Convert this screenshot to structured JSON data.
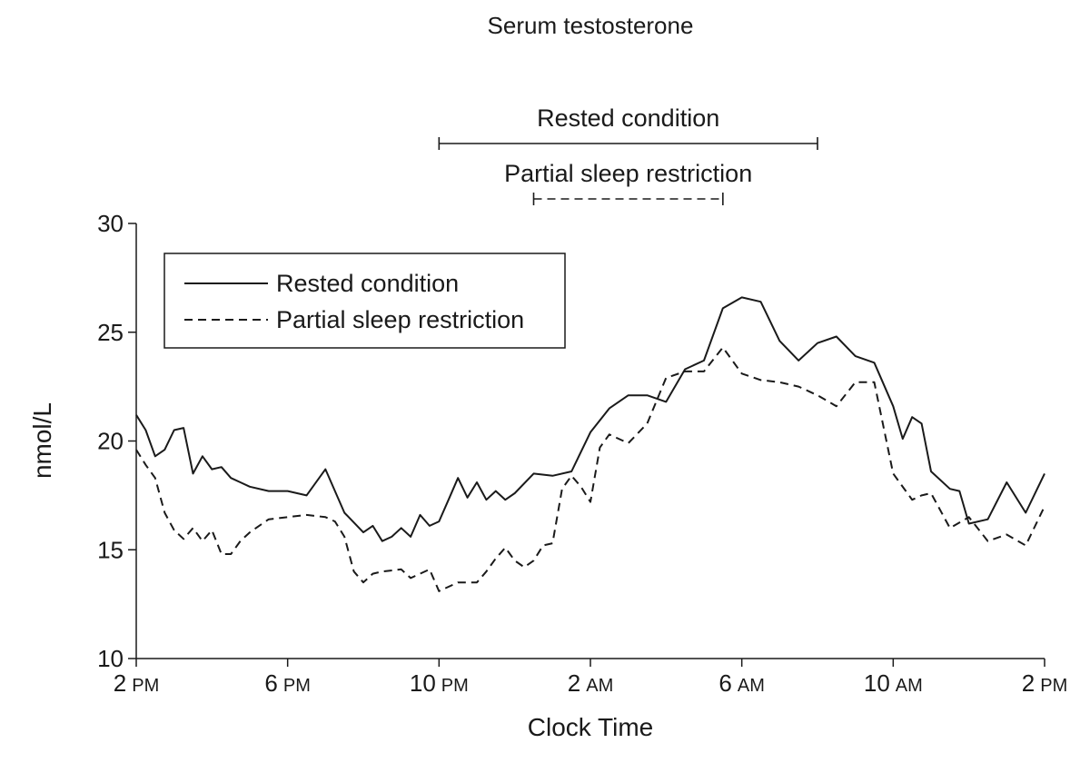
{
  "chart_data": {
    "type": "line",
    "title": "Serum testosterone",
    "xlabel": "Clock Time",
    "ylabel": "nmol/L",
    "ylim": [
      10,
      30
    ],
    "yticks": [
      10,
      15,
      20,
      25,
      30
    ],
    "xlim": [
      0,
      24
    ],
    "xunit": "hours from 2 PM",
    "xticks": [
      {
        "value": 0,
        "num": "2",
        "ampm": "PM"
      },
      {
        "value": 4,
        "num": "6",
        "ampm": "PM"
      },
      {
        "value": 8,
        "num": "10",
        "ampm": "PM"
      },
      {
        "value": 12,
        "num": "2",
        "ampm": "AM"
      },
      {
        "value": 16,
        "num": "6",
        "ampm": "AM"
      },
      {
        "value": 20,
        "num": "10",
        "ampm": "AM"
      },
      {
        "value": 24,
        "num": "2",
        "ampm": "PM"
      }
    ],
    "grid": false,
    "legend_position": "top-left",
    "sleep_bars": [
      {
        "name": "Rested condition",
        "start": 8,
        "end": 18,
        "style": "solid"
      },
      {
        "name": "Partial sleep restriction",
        "start": 10.5,
        "end": 15.5,
        "style": "dashed"
      }
    ],
    "series": [
      {
        "name": "Rested condition",
        "style": "solid",
        "x": [
          0,
          0.25,
          0.5,
          0.75,
          1,
          1.25,
          1.5,
          1.75,
          2,
          2.25,
          2.5,
          2.75,
          3,
          3.5,
          4,
          4.5,
          5,
          5.5,
          6,
          6.25,
          6.5,
          6.75,
          7,
          7.25,
          7.5,
          7.75,
          8,
          8.25,
          8.5,
          8.75,
          9,
          9.25,
          9.5,
          9.75,
          10,
          10.5,
          11,
          11.5,
          12,
          12.5,
          13,
          13.5,
          14,
          14.5,
          15,
          15.5,
          16,
          16.5,
          17,
          17.5,
          18,
          18.5,
          19,
          19.5,
          20,
          20.25,
          20.5,
          20.75,
          21,
          21.5,
          21.75,
          22,
          22.5,
          23,
          23.5,
          24
        ],
        "values": [
          21.2,
          20.5,
          19.3,
          19.6,
          20.5,
          20.6,
          18.5,
          19.3,
          18.7,
          18.8,
          18.3,
          18.1,
          17.9,
          17.7,
          17.7,
          17.5,
          18.7,
          16.7,
          15.8,
          16.1,
          15.4,
          15.6,
          16.0,
          15.6,
          16.6,
          16.1,
          16.3,
          17.3,
          18.3,
          17.4,
          18.1,
          17.3,
          17.7,
          17.3,
          17.6,
          18.5,
          18.4,
          18.6,
          20.4,
          21.5,
          22.1,
          22.1,
          21.8,
          23.3,
          23.7,
          26.1,
          26.6,
          26.4,
          24.6,
          23.7,
          24.5,
          24.8,
          23.9,
          23.6,
          21.6,
          20.1,
          21.1,
          20.8,
          18.6,
          17.8,
          17.7,
          16.2,
          16.4,
          18.1,
          16.7,
          18.5
        ]
      },
      {
        "name": "Partial sleep restriction",
        "style": "dashed",
        "x": [
          0,
          0.25,
          0.5,
          0.75,
          1,
          1.25,
          1.5,
          1.75,
          2,
          2.25,
          2.5,
          2.75,
          3,
          3.5,
          4,
          4.5,
          5,
          5.25,
          5.5,
          5.75,
          6,
          6.25,
          6.5,
          7,
          7.25,
          7.5,
          7.75,
          8,
          8.5,
          9,
          9.25,
          9.5,
          9.75,
          10,
          10.25,
          10.5,
          10.75,
          11,
          11.25,
          11.5,
          11.75,
          12,
          12.25,
          12.5,
          13,
          13.5,
          14,
          14.5,
          15,
          15.5,
          16,
          16.5,
          17,
          17.5,
          18,
          18.5,
          19,
          19.5,
          20,
          20.5,
          20.75,
          21,
          21.5,
          22,
          22.5,
          23,
          23.5,
          24
        ],
        "values": [
          19.6,
          18.9,
          18.3,
          16.7,
          15.9,
          15.5,
          16.0,
          15.4,
          15.9,
          14.8,
          14.8,
          15.4,
          15.8,
          16.4,
          16.5,
          16.6,
          16.5,
          16.3,
          15.6,
          14.0,
          13.5,
          13.9,
          14.0,
          14.1,
          13.7,
          13.9,
          14.1,
          13.1,
          13.5,
          13.5,
          14.0,
          14.6,
          15.1,
          14.5,
          14.2,
          14.5,
          15.2,
          15.3,
          17.8,
          18.4,
          17.9,
          17.2,
          19.7,
          20.3,
          19.9,
          20.8,
          22.9,
          23.2,
          23.2,
          24.3,
          23.1,
          22.8,
          22.7,
          22.5,
          22.1,
          21.6,
          22.7,
          22.7,
          18.5,
          17.3,
          17.5,
          17.6,
          16.0,
          16.5,
          15.4,
          15.7,
          15.2,
          17.0
        ]
      }
    ]
  }
}
